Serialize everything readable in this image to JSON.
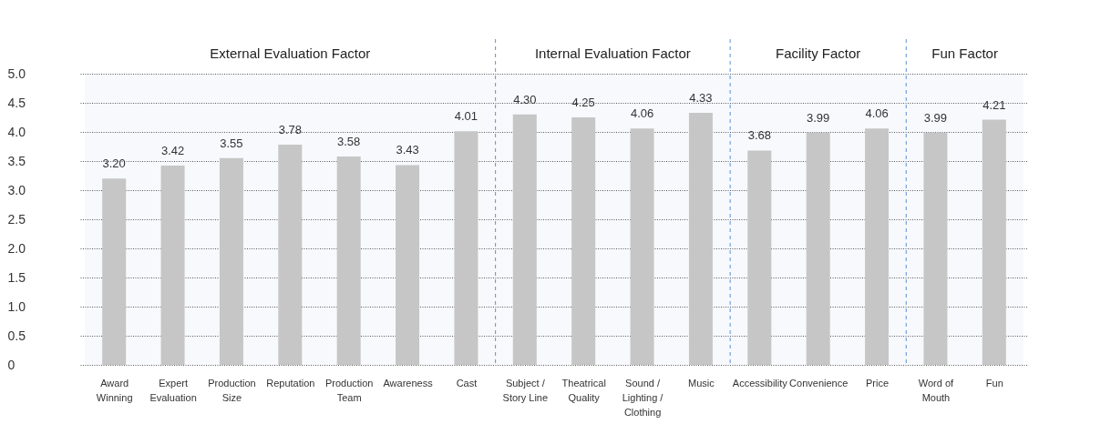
{
  "chart_data": {
    "type": "bar",
    "categories": [
      "Award Winning",
      "Expert Evaluation",
      "Production Size",
      "Reputation",
      "Production Team",
      "Awareness",
      "Cast",
      "Subject / Story Line",
      "Theatrical Quality",
      "Sound / Lighting / Clothing",
      "Music",
      "Accessibility",
      "Convenience",
      "Price",
      "Word of Mouth",
      "Fun"
    ],
    "values": [
      3.2,
      3.42,
      3.55,
      3.78,
      3.58,
      3.43,
      4.01,
      4.3,
      4.25,
      4.06,
      4.33,
      3.68,
      3.99,
      4.06,
      3.99,
      4.21
    ],
    "value_labels": [
      "3.20",
      "3.42",
      "3.55",
      "3.78",
      "3.58",
      "3.43",
      "4.01",
      "4.30",
      "4.25",
      "4.06",
      "4.33",
      "3.68",
      "3.99",
      "4.06",
      "3.99",
      "4.21"
    ],
    "color": "#c6c6c6",
    "ylim": [
      0,
      5
    ],
    "yticks": [
      0,
      {
        "value": 0.5,
        "label": "0.5"
      },
      {
        "value": 1,
        "label": "1.0"
      },
      {
        "value": 1.5,
        "label": "1.5"
      },
      {
        "value": 2,
        "label": "2.0"
      },
      {
        "value": 2.5,
        "label": "2.5"
      },
      {
        "value": 3,
        "label": "3.0"
      },
      {
        "value": 3.5,
        "label": "3.5"
      },
      {
        "value": 4,
        "label": "4.0"
      },
      {
        "value": 4.5,
        "label": "4.5"
      },
      {
        "value": 5,
        "label": "5.0"
      }
    ],
    "grid": "y",
    "bands": [
      {
        "axis": "x",
        "from": "Award Winning",
        "to": "Cast",
        "label": "External Evaluation Factor",
        "color": "#5b8fd6"
      },
      {
        "axis": "x",
        "from": "Subject / Story Line",
        "to": "Music",
        "label": "Internal Evaluation Factor",
        "color": "#5b8fd6"
      },
      {
        "axis": "x",
        "from": "Accessibility",
        "to": "Price",
        "label": "Facility Factor",
        "color": "#5b8fd6"
      },
      {
        "axis": "x",
        "from": "Word of Mouth",
        "to": "Fun",
        "label": "Fun Factor",
        "color": "#5b8fd6"
      }
    ]
  }
}
